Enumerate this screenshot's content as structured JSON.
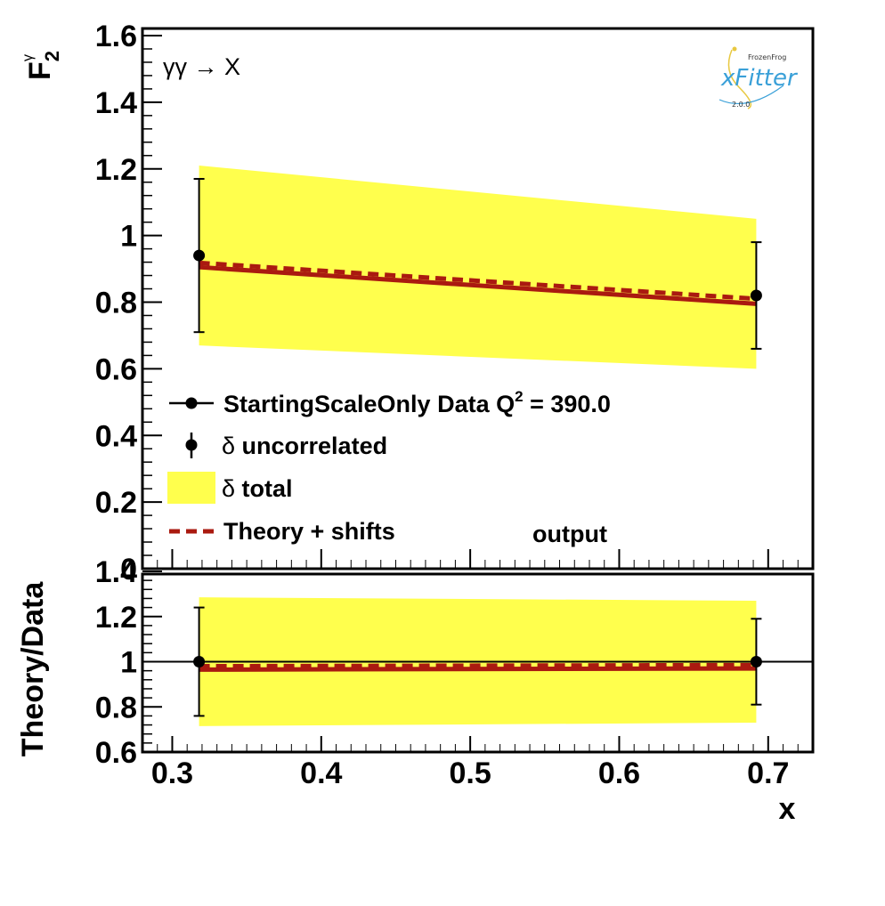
{
  "chart_data": [
    {
      "type": "line",
      "panel": "main",
      "ylabel": "F",
      "ylabel_sub": "2",
      "ylabel_sup": "γ",
      "process_label": "γγ → X",
      "ylim": [
        0,
        1.6
      ],
      "yticks": [
        0,
        0.2,
        0.4,
        0.6,
        0.8,
        1,
        1.2,
        1.4,
        1.6
      ],
      "ytick_labels": [
        "0",
        "0.2",
        "0.4",
        "0.6",
        "0.8",
        "1",
        "1.2",
        "1.4",
        "1.6"
      ],
      "xlim": [
        0.28,
        0.73
      ],
      "data_points": [
        {
          "x": 0.318,
          "y": 0.94,
          "yerr_low": 0.71,
          "yerr_high": 1.17
        },
        {
          "x": 0.692,
          "y": 0.82,
          "yerr_low": 0.66,
          "yerr_high": 0.98
        }
      ],
      "total_band": [
        {
          "x": 0.318,
          "low": 0.67,
          "high": 1.21
        },
        {
          "x": 0.692,
          "low": 0.6,
          "high": 1.05
        }
      ],
      "theory": [
        {
          "x": 0.318,
          "y": 0.905
        },
        {
          "x": 0.692,
          "y": 0.795
        }
      ],
      "theory_shifts": [
        {
          "x": 0.318,
          "y": 0.918
        },
        {
          "x": 0.692,
          "y": 0.81
        }
      ],
      "legend": [
        {
          "kind": "point-line",
          "pre": "StartingScaleOnly  Data Q",
          "sup": "2",
          "post": " = 390.0"
        },
        {
          "kind": "point-err",
          "delta": "δ",
          "text": " uncorrelated"
        },
        {
          "kind": "band",
          "delta": "δ",
          "text": " total"
        },
        {
          "kind": "dashed",
          "text": "Theory + shifts"
        }
      ],
      "annotation": "output",
      "legend_placement": "bottom-left"
    },
    {
      "type": "line",
      "panel": "ratio",
      "ylabel": "Theory/Data",
      "xlabel": "x",
      "ylim": [
        0.6,
        1.4
      ],
      "yticks": [
        0.6,
        0.8,
        1,
        1.2,
        1.4
      ],
      "ytick_labels": [
        "0.6",
        "0.8",
        "1",
        "1.2",
        "1.4"
      ],
      "xlim": [
        0.28,
        0.73
      ],
      "xticks": [
        0.3,
        0.4,
        0.5,
        0.6,
        0.7
      ],
      "xtick_labels": [
        "0.3",
        "0.4",
        "0.5",
        "0.6",
        "0.7"
      ],
      "data_points": [
        {
          "x": 0.318,
          "y": 1.0,
          "yerr_low": 0.76,
          "yerr_high": 1.24
        },
        {
          "x": 0.692,
          "y": 1.0,
          "yerr_low": 0.81,
          "yerr_high": 1.19
        }
      ],
      "total_band": [
        {
          "x": 0.318,
          "low": 0.715,
          "high": 1.285
        },
        {
          "x": 0.692,
          "low": 0.73,
          "high": 1.27
        }
      ],
      "theory": [
        {
          "x": 0.318,
          "y": 0.965
        },
        {
          "x": 0.692,
          "y": 0.97
        }
      ],
      "theory_shifts": [
        {
          "x": 0.318,
          "y": 0.98
        },
        {
          "x": 0.692,
          "y": 0.985
        }
      ],
      "reference_line": 1
    }
  ],
  "logo": {
    "top": "FrozenFrog",
    "main": "xFitter",
    "version": "2.0.0"
  },
  "colors": {
    "band": "#ffff4d",
    "theory": "#aa1a10",
    "points": "#000000",
    "frame": "#000000",
    "logo_accent": "#3aa0d8"
  }
}
